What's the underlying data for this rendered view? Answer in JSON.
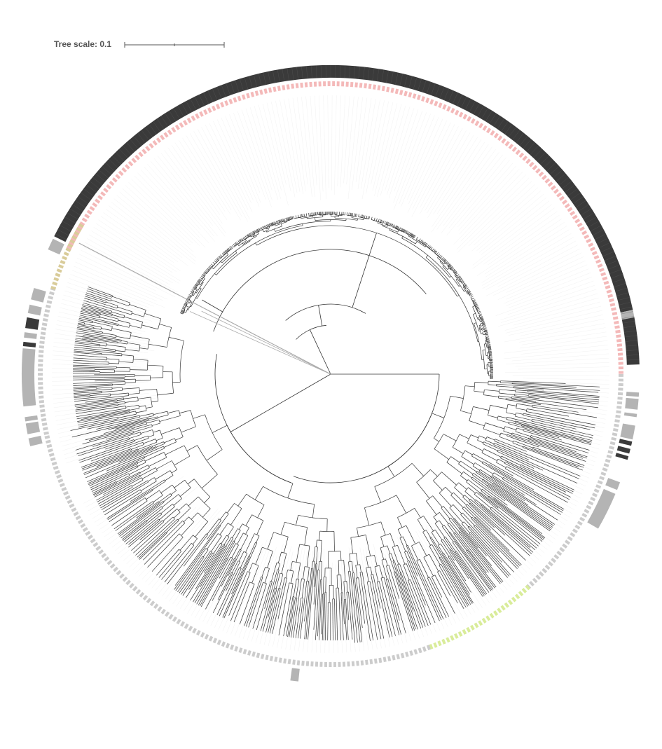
{
  "tree_scale": {
    "label": "Tree scale: 0.1",
    "value": 0.1
  },
  "colors": {
    "branch": "#333333",
    "outlier_branch": "#aaaaaa",
    "label_leader": "#eeeeee",
    "ring_dark": "#3a3a3a",
    "ring_grey": "#b4b4b4",
    "ring_pink": "#f4b9b9",
    "ring_tan": "#d9cc9a",
    "ring_lime": "#d9ec9a",
    "ring_light": "#cccccc"
  }
}
